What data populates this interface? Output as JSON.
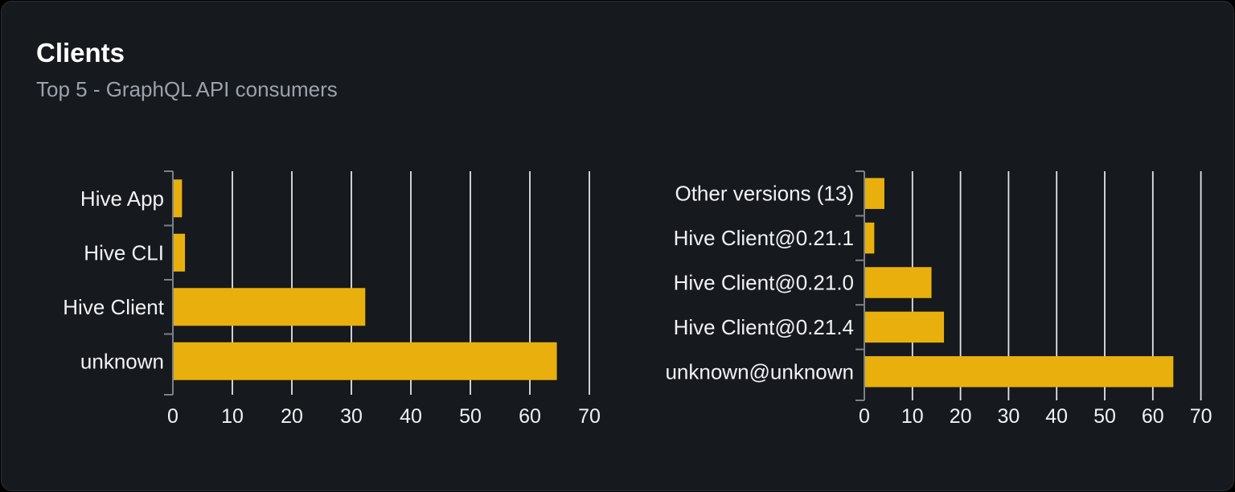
{
  "panel": {
    "title": "Clients",
    "subtitle": "Top 5 - GraphQL API consumers"
  },
  "colors": {
    "page_bg": "#000000",
    "card_bg": "#16191e",
    "card_border": "#2c3037",
    "title": "#ffffff",
    "subtitle": "#9ba2ab",
    "bar": "#e9b00d",
    "grid_line": "#e2e5ea",
    "axis": "#7b8188",
    "tick_label": "#f1f2f4",
    "category_label": "#f1f2f4"
  },
  "chart_data": [
    {
      "type": "bar",
      "orientation": "horizontal",
      "name": "clients-by-name",
      "title": "",
      "xlabel": "",
      "ylabel": "",
      "categories": [
        "Hive App",
        "Hive CLI",
        "Hive Client",
        "unknown"
      ],
      "values": [
        1.4,
        1.9,
        32.2,
        64.4
      ],
      "xlim": [
        0,
        70
      ],
      "x_ticks": [
        0,
        10,
        20,
        30,
        40,
        50,
        60,
        70
      ],
      "grid": true,
      "legend": false
    },
    {
      "type": "bar",
      "orientation": "horizontal",
      "name": "clients-by-version",
      "title": "",
      "xlabel": "",
      "ylabel": "",
      "categories": [
        "Other versions (13)",
        "Hive Client@0.21.1",
        "Hive Client@0.21.0",
        "Hive Client@0.21.4",
        "unknown@unknown"
      ],
      "values": [
        4.0,
        1.9,
        13.8,
        16.4,
        64.1
      ],
      "xlim": [
        0,
        70
      ],
      "x_ticks": [
        0,
        10,
        20,
        30,
        40,
        50,
        60,
        70
      ],
      "grid": true,
      "legend": false
    }
  ]
}
